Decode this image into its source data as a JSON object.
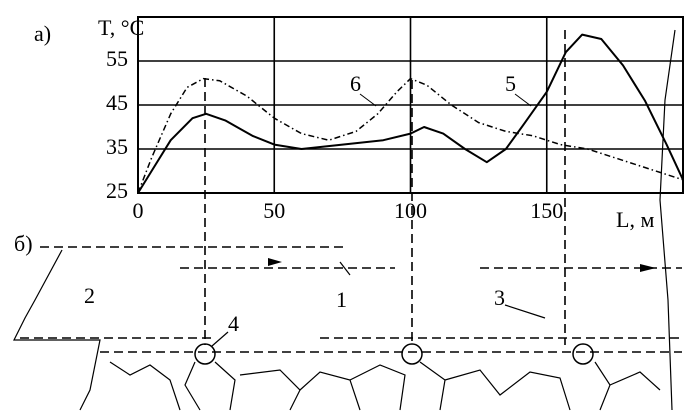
{
  "chart_data": {
    "type": "line",
    "panel_label": "а)",
    "y_label": "T, °C",
    "x_label": "L, м",
    "xlim": [
      0,
      200
    ],
    "ylim": [
      25,
      65
    ],
    "xticks": [
      0,
      50,
      100,
      150
    ],
    "yticks": [
      25,
      35,
      45,
      55
    ],
    "grid": true,
    "series": [
      {
        "name": "5",
        "color": "#000000",
        "style": "solid",
        "x": [
          0,
          5,
          12,
          20,
          25,
          32,
          42,
          50,
          60,
          75,
          90,
          100,
          105,
          112,
          120,
          128,
          135,
          142,
          150,
          157,
          163,
          170,
          178,
          186,
          194,
          200
        ],
        "values": [
          25,
          30,
          37,
          42,
          43,
          41.5,
          38,
          36,
          35,
          36,
          37,
          38.5,
          40,
          38.5,
          35,
          32,
          35,
          41,
          48,
          57,
          61,
          60,
          54,
          46,
          36,
          28
        ]
      },
      {
        "name": "6",
        "color": "#000000",
        "style": "dashdot",
        "x": [
          0,
          5,
          12,
          18,
          24,
          30,
          40,
          50,
          60,
          70,
          80,
          88,
          95,
          100,
          106,
          115,
          125,
          135,
          145,
          155,
          165,
          175,
          185,
          200
        ],
        "values": [
          25,
          33,
          43,
          49,
          51,
          50.5,
          47,
          42,
          38.5,
          37,
          39,
          43,
          48,
          51,
          49.5,
          45,
          41,
          39,
          38,
          36,
          35,
          33,
          31,
          28
        ]
      }
    ]
  },
  "diagram": {
    "panel_label": "б)",
    "labels": [
      "1",
      "2",
      "3",
      "4"
    ]
  }
}
